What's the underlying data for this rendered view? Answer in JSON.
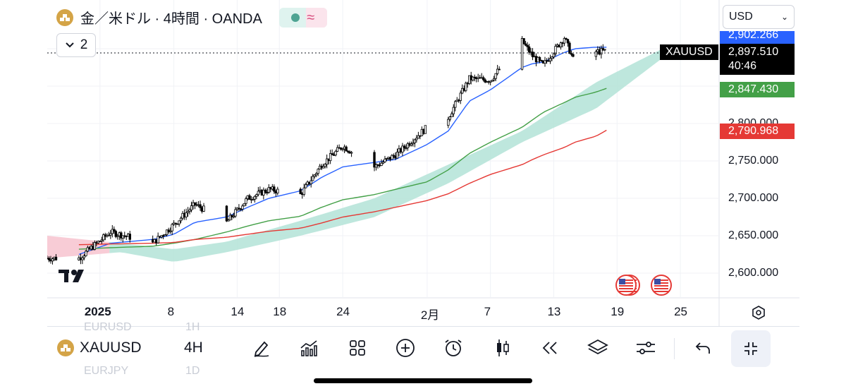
{
  "header": {
    "title": "金／米ドル · 4時間 · OANDA",
    "collapse_count": "2",
    "currency": "USD"
  },
  "price_axis": {
    "labels": [
      "2,800.000",
      "2,750.000",
      "2,700.000",
      "2,650.000",
      "2,600.000"
    ],
    "blue_tag": "2,902.266",
    "last_price": "2,897.510",
    "countdown": "40:46",
    "green_tag": "2,847.430",
    "red_tag": "2,790.968",
    "symbol_tag": "XAUUSD"
  },
  "time_axis": {
    "labels": [
      "2025",
      "8",
      "14",
      "18",
      "24",
      "2月",
      "7",
      "13",
      "19",
      "25"
    ]
  },
  "toolbar": {
    "symbol": "XAUUSD",
    "interval": "4H",
    "ghost_top": [
      "EURUSD",
      "1H"
    ],
    "ghost_bottom": [
      "EURJPY",
      "1D"
    ]
  },
  "colors": {
    "cloud_bull": "#b7e4d9",
    "cloud_bear": "#f7c6d2",
    "ma_fast": "#2962ff",
    "ma_mid": "#43a047",
    "ma_slow": "#e53935"
  },
  "chart_data": {
    "type": "candlestick",
    "symbol": "XAUUSD",
    "interval": "4H",
    "x_range": [
      "2024-12-27",
      "2025-02-28"
    ],
    "ylim": [
      2580,
      2930
    ],
    "grid": true,
    "key_points": {
      "x": [
        "2024-12-30",
        "2025-01-02",
        "2025-01-06",
        "2025-01-08",
        "2025-01-10",
        "2025-01-13",
        "2025-01-15",
        "2025-01-17",
        "2025-01-20",
        "2025-01-22",
        "2025-01-24",
        "2025-01-27",
        "2025-01-29",
        "2025-02-01",
        "2025-02-03",
        "2025-02-05",
        "2025-02-07",
        "2025-02-10",
        "2025-02-11",
        "2025-02-12",
        "2025-02-14",
        "2025-02-15",
        "2025-02-17",
        "2025-02-18"
      ],
      "close": [
        2620,
        2655,
        2640,
        2665,
        2692,
        2668,
        2700,
        2712,
        2705,
        2745,
        2770,
        2742,
        2758,
        2795,
        2808,
        2860,
        2858,
        2910,
        2890,
        2878,
        2915,
        2880,
        2896,
        2897
      ]
    },
    "series": [
      {
        "name": "",
        "values_at_key_points": [
          2625,
          2640,
          2645,
          2652,
          2668,
          2675,
          2688,
          2700,
          2710,
          2728,
          2742,
          2748,
          2752,
          2772,
          2790,
          2830,
          2845,
          2875,
          2880,
          2882,
          2895,
          2900,
          2902,
          2902
        ]
      },
      {
        "name": "",
        "values_at_key_points": [
          2632,
          2634,
          2636,
          2640,
          2645,
          2655,
          2663,
          2670,
          2676,
          2688,
          2698,
          2705,
          2712,
          2722,
          2738,
          2760,
          2775,
          2795,
          2805,
          2815,
          2828,
          2835,
          2842,
          2847
        ]
      },
      {
        "name": "",
        "values_at_key_points": [
          2638,
          2639,
          2640,
          2641,
          2645,
          2648,
          2652,
          2656,
          2660,
          2667,
          2675,
          2682,
          2688,
          2697,
          2706,
          2720,
          2732,
          2745,
          2752,
          2758,
          2768,
          2775,
          2783,
          2791
        ]
      }
    ],
    "ichimoku_cloud": {
      "x": [
        "2024-12-27",
        "2025-01-03",
        "2025-01-08",
        "2025-01-13",
        "2025-01-20",
        "2025-01-27",
        "2025-02-03",
        "2025-02-10",
        "2025-02-17",
        "2025-02-24"
      ],
      "upper": [
        2650,
        2640,
        2632,
        2642,
        2670,
        2700,
        2745,
        2790,
        2855,
        2905
      ],
      "lower": [
        2620,
        2628,
        2615,
        2628,
        2650,
        2675,
        2720,
        2775,
        2820,
        2895
      ]
    }
  }
}
